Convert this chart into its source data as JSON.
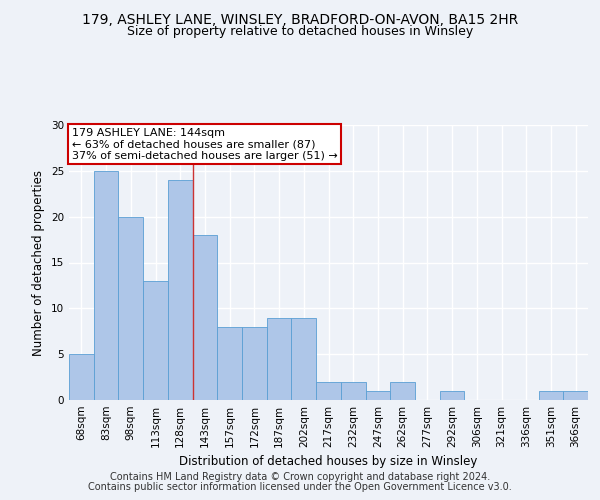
{
  "title_line1": "179, ASHLEY LANE, WINSLEY, BRADFORD-ON-AVON, BA15 2HR",
  "title_line2": "Size of property relative to detached houses in Winsley",
  "xlabel": "Distribution of detached houses by size in Winsley",
  "ylabel": "Number of detached properties",
  "categories": [
    "68sqm",
    "83sqm",
    "98sqm",
    "113sqm",
    "128sqm",
    "143sqm",
    "157sqm",
    "172sqm",
    "187sqm",
    "202sqm",
    "217sqm",
    "232sqm",
    "247sqm",
    "262sqm",
    "277sqm",
    "292sqm",
    "306sqm",
    "321sqm",
    "336sqm",
    "351sqm",
    "366sqm"
  ],
  "values": [
    5,
    25,
    20,
    13,
    24,
    18,
    8,
    8,
    9,
    9,
    2,
    2,
    1,
    2,
    0,
    1,
    0,
    0,
    0,
    1,
    1
  ],
  "bar_color": "#aec6e8",
  "bar_edge_color": "#5a9fd4",
  "annotation_text": "179 ASHLEY LANE: 144sqm\n← 63% of detached houses are smaller (87)\n37% of semi-detached houses are larger (51) →",
  "annotation_box_color": "#ffffff",
  "annotation_box_edge_color": "#cc0000",
  "vline_x_index": 4,
  "ylim": [
    0,
    30
  ],
  "yticks": [
    0,
    5,
    10,
    15,
    20,
    25,
    30
  ],
  "footer_line1": "Contains HM Land Registry data © Crown copyright and database right 2024.",
  "footer_line2": "Contains public sector information licensed under the Open Government Licence v3.0.",
  "background_color": "#eef2f8",
  "plot_bg_color": "#eef2f8",
  "grid_color": "#ffffff",
  "title_fontsize": 10,
  "subtitle_fontsize": 9,
  "axis_label_fontsize": 8.5,
  "tick_fontsize": 7.5,
  "annotation_fontsize": 8,
  "footer_fontsize": 7
}
